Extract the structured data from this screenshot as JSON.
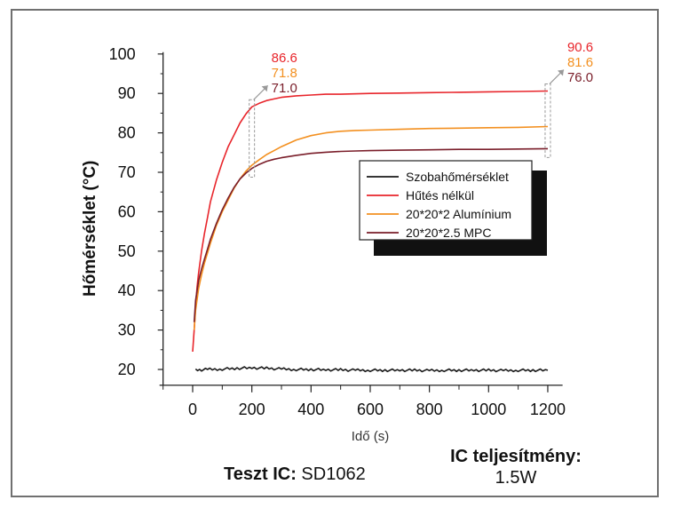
{
  "chart_data": {
    "type": "line",
    "xlabel": "Idő (s)",
    "ylabel": "Hőmérséklet (°C)",
    "xlim": [
      -100,
      1250
    ],
    "ylim": [
      16,
      100
    ],
    "x_ticks": [
      0,
      200,
      400,
      600,
      800,
      1000,
      1200
    ],
    "y_ticks": [
      20,
      30,
      40,
      50,
      60,
      70,
      80,
      90,
      100
    ],
    "grid": false,
    "legend_position": "center-right",
    "series": [
      {
        "name": "Szobahőmérséklet",
        "color": "#1a1a1a",
        "x": [
          10,
          50,
          100,
          150,
          200,
          250,
          300,
          350,
          400,
          450,
          500,
          550,
          600,
          650,
          700,
          750,
          800,
          850,
          900,
          950,
          1000,
          1050,
          1100,
          1150,
          1200
        ],
        "y": [
          19.8,
          20.0,
          20.1,
          20.3,
          20.4,
          20.3,
          20.1,
          20.0,
          20.0,
          19.9,
          19.9,
          19.8,
          19.8,
          19.8,
          19.8,
          19.8,
          19.7,
          19.8,
          19.8,
          19.8,
          19.8,
          19.7,
          19.8,
          19.8,
          19.8
        ]
      },
      {
        "name": "Hűtés nélkül",
        "color": "#e8252b",
        "x": [
          0,
          5,
          10,
          15,
          20,
          30,
          40,
          50,
          60,
          80,
          100,
          120,
          140,
          160,
          180,
          200,
          225,
          250,
          275,
          300,
          350,
          400,
          450,
          500,
          600,
          700,
          800,
          900,
          1000,
          1100,
          1200
        ],
        "y": [
          24.5,
          30.0,
          36.0,
          41.0,
          44.5,
          50.0,
          54.5,
          58.5,
          62.5,
          68.0,
          72.5,
          76.5,
          79.5,
          82.5,
          84.8,
          86.6,
          87.5,
          88.2,
          88.6,
          89.0,
          89.4,
          89.6,
          89.8,
          89.8,
          90.0,
          90.1,
          90.2,
          90.3,
          90.4,
          90.5,
          90.6
        ]
      },
      {
        "name": "20*20*2 Alumínium",
        "color": "#f39020",
        "x": [
          5,
          10,
          20,
          30,
          40,
          50,
          60,
          80,
          100,
          120,
          140,
          160,
          180,
          200,
          225,
          250,
          275,
          300,
          350,
          400,
          450,
          500,
          550,
          600,
          700,
          800,
          900,
          1000,
          1100,
          1200
        ],
        "y": [
          30.0,
          35.0,
          40.5,
          44.0,
          47.0,
          49.5,
          52.0,
          56.5,
          60.0,
          63.0,
          66.0,
          68.3,
          70.3,
          71.8,
          73.2,
          74.5,
          75.5,
          76.5,
          78.2,
          79.3,
          80.0,
          80.4,
          80.6,
          80.7,
          80.9,
          81.1,
          81.2,
          81.3,
          81.4,
          81.6
        ]
      },
      {
        "name": "20*20*2.5 MPC",
        "color": "#7a1e2a",
        "x": [
          5,
          10,
          20,
          30,
          40,
          50,
          60,
          80,
          100,
          120,
          140,
          160,
          180,
          200,
          225,
          250,
          275,
          300,
          350,
          400,
          450,
          500,
          550,
          600,
          700,
          800,
          900,
          1000,
          1100,
          1200
        ],
        "y": [
          32.0,
          37.5,
          42.5,
          45.5,
          48.0,
          50.5,
          53.0,
          57.0,
          60.5,
          63.5,
          66.2,
          68.3,
          69.8,
          71.0,
          72.0,
          72.8,
          73.3,
          73.7,
          74.3,
          74.8,
          75.1,
          75.3,
          75.4,
          75.5,
          75.6,
          75.7,
          75.8,
          75.8,
          75.9,
          76.0
        ]
      }
    ],
    "annotations": [
      {
        "x": 200,
        "values": [
          {
            "label": "86.6",
            "value": 86.6,
            "color": "#e8252b"
          },
          {
            "label": "71.8",
            "value": 71.8,
            "color": "#f39020"
          },
          {
            "label": "71.0",
            "value": 71.0,
            "color": "#7a1e2a"
          }
        ]
      },
      {
        "x": 1200,
        "values": [
          {
            "label": "90.6",
            "value": 90.6,
            "color": "#e8252b"
          },
          {
            "label": "81.6",
            "value": 81.6,
            "color": "#f39020"
          },
          {
            "label": "76.0",
            "value": 76.0,
            "color": "#7a1e2a"
          }
        ]
      }
    ]
  },
  "captions": {
    "test_ic_label": "Teszt IC:",
    "test_ic_value": "SD1062",
    "power_label": "IC teljesítmény:",
    "power_value": "1.5W"
  }
}
